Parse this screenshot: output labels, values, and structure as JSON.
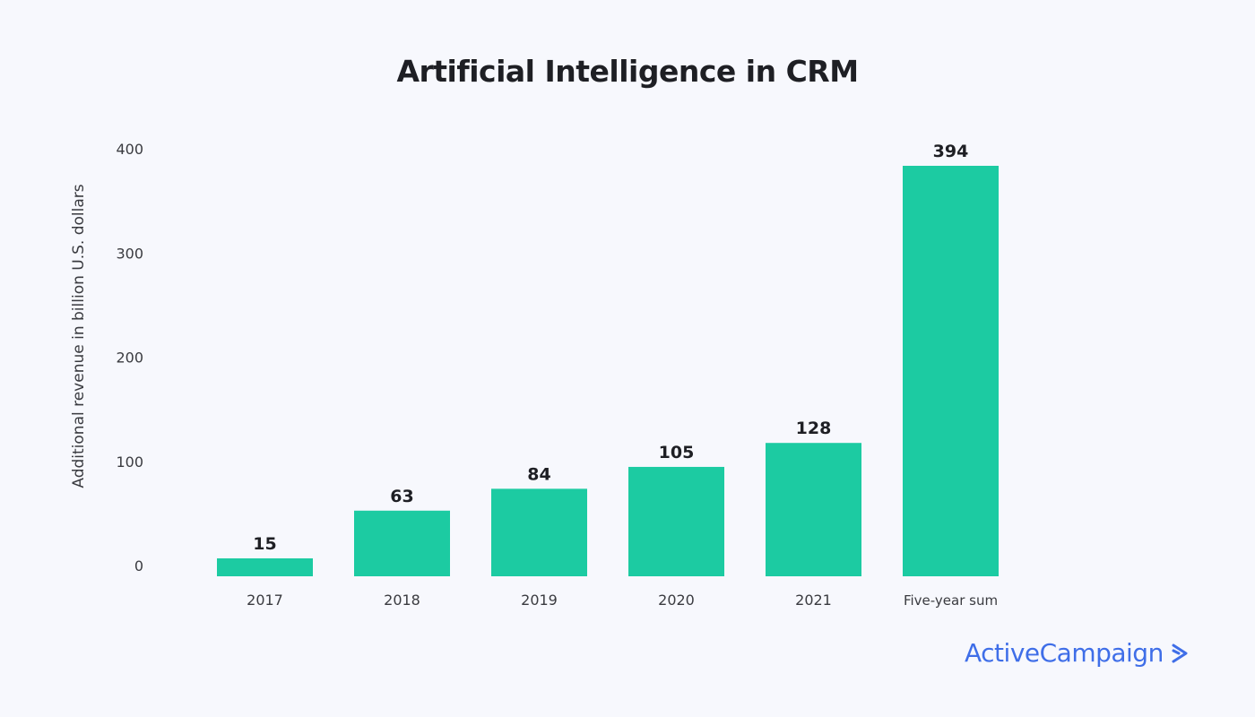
{
  "chart_data": {
    "type": "bar",
    "title": "Artificial Intelligence in CRM",
    "xlabel": "",
    "ylabel": "Additional revenue in billion U.S. dollars",
    "categories": [
      "2017",
      "2018",
      "2019",
      "2020",
      "2021",
      "Five-year sum"
    ],
    "values": [
      15,
      63,
      84,
      105,
      128,
      394
    ],
    "yticks": [
      "0",
      "100",
      "200",
      "300",
      "400"
    ],
    "ylim": [
      0,
      400
    ],
    "grid": false,
    "bar_color": "#1ccba2"
  },
  "brand": {
    "logo_text": "ActiveCampaign",
    "color": "#3f6ee8"
  }
}
